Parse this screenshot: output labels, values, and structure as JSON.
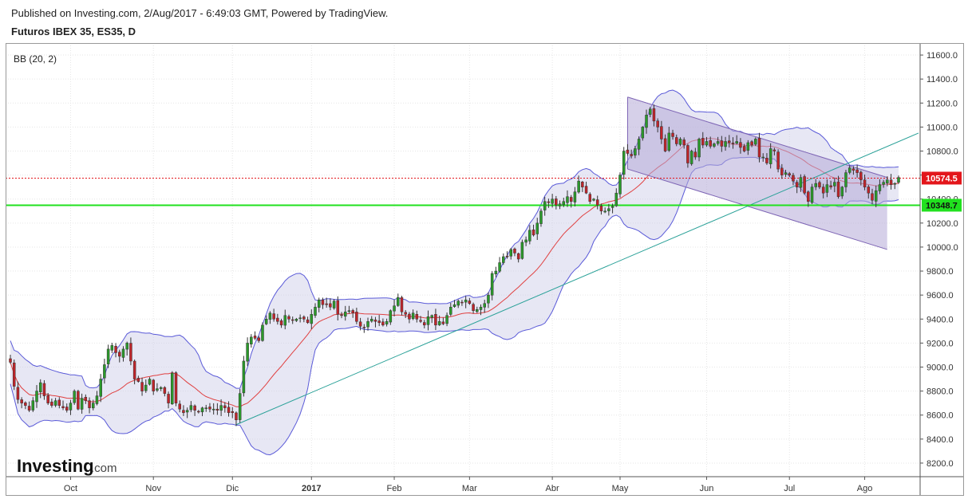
{
  "header": {
    "publish_line": "Published on Investing.com, 2/Aug/2017 - 6:49:03 GMT, Powered by TradingView.",
    "symbol_line": "Futuros IBEX 35, ES35, D"
  },
  "indicator_label": "BB (20, 2)",
  "logo": {
    "main": "Investing",
    "sub": ".com"
  },
  "chart_data": {
    "type": "candlestick",
    "ylim": [
      8100,
      11700
    ],
    "y_ticks": [
      8200,
      8400,
      8600,
      8800,
      9000,
      9200,
      9400,
      9600,
      9800,
      10000,
      10200,
      10400,
      10600,
      10800,
      11000,
      11200,
      11400,
      11600
    ],
    "y_tick_labels": [
      "8200.0",
      "8400.0",
      "8600.0",
      "8800.0",
      "9000.0",
      "9200.0",
      "9400.0",
      "9600.0",
      "9800.0",
      "10000.0",
      "10200.0",
      "10400.0",
      "10600.0",
      "10800.0",
      "11000.0",
      "11200.0",
      "11400.0",
      "11600.0"
    ],
    "x_labels": [
      {
        "label": "Oct",
        "bar": 16,
        "bold": false
      },
      {
        "label": "Nov",
        "bar": 38,
        "bold": false
      },
      {
        "label": "Dic",
        "bar": 59,
        "bold": false
      },
      {
        "label": "2017",
        "bar": 80,
        "bold": true
      },
      {
        "label": "Feb",
        "bar": 102,
        "bold": false
      },
      {
        "label": "Mar",
        "bar": 122,
        "bold": false
      },
      {
        "label": "Abr",
        "bar": 144,
        "bold": false
      },
      {
        "label": "May",
        "bar": 162,
        "bold": false
      },
      {
        "label": "Jun",
        "bar": 185,
        "bold": false
      },
      {
        "label": "Jul",
        "bar": 207,
        "bold": false
      },
      {
        "label": "Ago",
        "bar": 227,
        "bold": false
      }
    ],
    "price_levels": [
      {
        "value": 10574.5,
        "label": "10574.5",
        "color": "#e3161b",
        "style": "dotted"
      },
      {
        "value": 10348.7,
        "label": "10348.7",
        "color": "#21e11f",
        "style": "solid"
      }
    ],
    "colors": {
      "up": "#2a9a2a",
      "down": "#c0242a",
      "band_fill": "#c9c9e6",
      "band_line": "#5a5ad8",
      "mid_line": "#e04040",
      "trend": "#2aa198",
      "channel_fill": "#b4aad7",
      "channel_line": "#7d64b4"
    },
    "closes": [
      9040,
      8840,
      8730,
      8700,
      8680,
      8640,
      8720,
      8800,
      8870,
      8760,
      8700,
      8680,
      8720,
      8680,
      8660,
      8640,
      8700,
      8800,
      8650,
      8740,
      8720,
      8660,
      8700,
      8760,
      8900,
      9020,
      9150,
      9180,
      9120,
      9090,
      9150,
      9200,
      9050,
      8900,
      8880,
      8800,
      8850,
      8900,
      8800,
      8820,
      8830,
      8780,
      8700,
      8950,
      8700,
      8650,
      8620,
      8640,
      8680,
      8640,
      8630,
      8660,
      8660,
      8650,
      8650,
      8640,
      8680,
      8660,
      8620,
      8620,
      8560,
      8780,
      9050,
      9200,
      9250,
      9240,
      9220,
      9350,
      9400,
      9450,
      9400,
      9380,
      9350,
      9430,
      9400,
      9390,
      9400,
      9410,
      9400,
      9370,
      9440,
      9500,
      9560,
      9520,
      9520,
      9500,
      9550,
      9440,
      9430,
      9460,
      9470,
      9450,
      9380,
      9340,
      9330,
      9380,
      9400,
      9380,
      9370,
      9350,
      9380,
      9470,
      9510,
      9580,
      9460,
      9440,
      9400,
      9450,
      9400,
      9380,
      9350,
      9420,
      9430,
      9350,
      9380,
      9360,
      9430,
      9500,
      9520,
      9550,
      9540,
      9560,
      9530,
      9470,
      9480,
      9500,
      9530,
      9600,
      9780,
      9800,
      9870,
      9920,
      9920,
      9980,
      9950,
      9900,
      10040,
      10060,
      10140,
      10100,
      10200,
      10300,
      10380,
      10370,
      10400,
      10350,
      10360,
      10380,
      10420,
      10380,
      10460,
      10550,
      10500,
      10450,
      10380,
      10400,
      10350,
      10300,
      10300,
      10320,
      10340,
      10450,
      10600,
      10800,
      10780,
      10760,
      10820,
      10900,
      11000,
      11100,
      11150,
      11050,
      11000,
      10900,
      10800,
      10950,
      10920,
      10860,
      10900,
      10850,
      10700,
      10800,
      10750,
      10900,
      10850,
      10880,
      10840,
      10860,
      10880,
      10840,
      10880,
      10870,
      10860,
      10880,
      10830,
      10800,
      10870,
      10850,
      10900,
      10750,
      10750,
      10700,
      10820,
      10800,
      10650,
      10600,
      10620,
      10600,
      10550,
      10500,
      10580,
      10450,
      10380,
      10500,
      10530,
      10500,
      10450,
      10520,
      10500,
      10540,
      10420,
      10500,
      10620,
      10660,
      10640,
      10620,
      10560,
      10500,
      10450,
      10390,
      10470,
      10520,
      10540,
      10560,
      10520,
      10530,
      10580
    ]
  }
}
